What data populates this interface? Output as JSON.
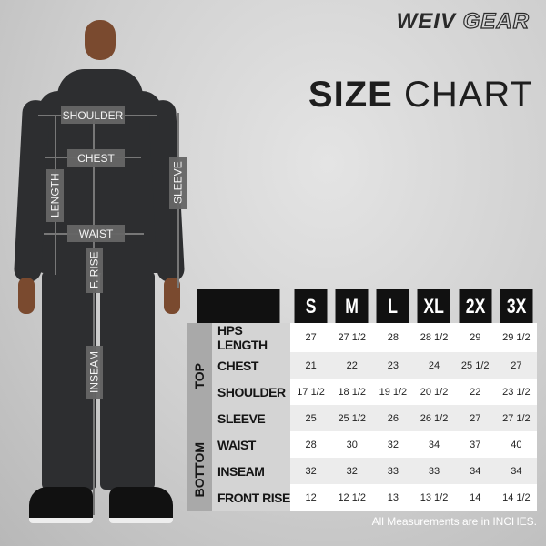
{
  "brand": {
    "logo": "WEIV GEAR"
  },
  "title": {
    "bold": "SIZE",
    "light": "CHART"
  },
  "figure_labels": [
    "SHOULDER",
    "CHEST",
    "LENGTH",
    "SLEEVE",
    "WAIST",
    "F. RISE",
    "INSEAM"
  ],
  "table": {
    "sizes": [
      "S",
      "M",
      "L",
      "XL",
      "2X",
      "3X"
    ],
    "groups": [
      {
        "name": "TOP",
        "rows": [
          {
            "label": "HPS LENGTH",
            "values": [
              "27",
              "27 1/2",
              "28",
              "28 1/2",
              "29",
              "29 1/2"
            ]
          },
          {
            "label": "CHEST",
            "values": [
              "21",
              "22",
              "23",
              "24",
              "25 1/2",
              "27"
            ]
          },
          {
            "label": "SHOULDER",
            "values": [
              "17 1/2",
              "18 1/2",
              "19 1/2",
              "20 1/2",
              "22",
              "23 1/2"
            ]
          },
          {
            "label": "SLEEVE",
            "values": [
              "25",
              "25 1/2",
              "26",
              "26 1/2",
              "27",
              "27 1/2"
            ]
          }
        ]
      },
      {
        "name": "BOTTOM",
        "rows": [
          {
            "label": "WAIST",
            "values": [
              "28",
              "30",
              "32",
              "34",
              "37",
              "40"
            ]
          },
          {
            "label": "INSEAM",
            "values": [
              "32",
              "32",
              "33",
              "33",
              "34",
              "34"
            ]
          },
          {
            "label": "FRONT RISE",
            "values": [
              "12",
              "12 1/2",
              "13",
              "13 1/2",
              "14",
              "14 1/2"
            ]
          }
        ]
      }
    ]
  },
  "note": "All Measurements are in INCHES."
}
